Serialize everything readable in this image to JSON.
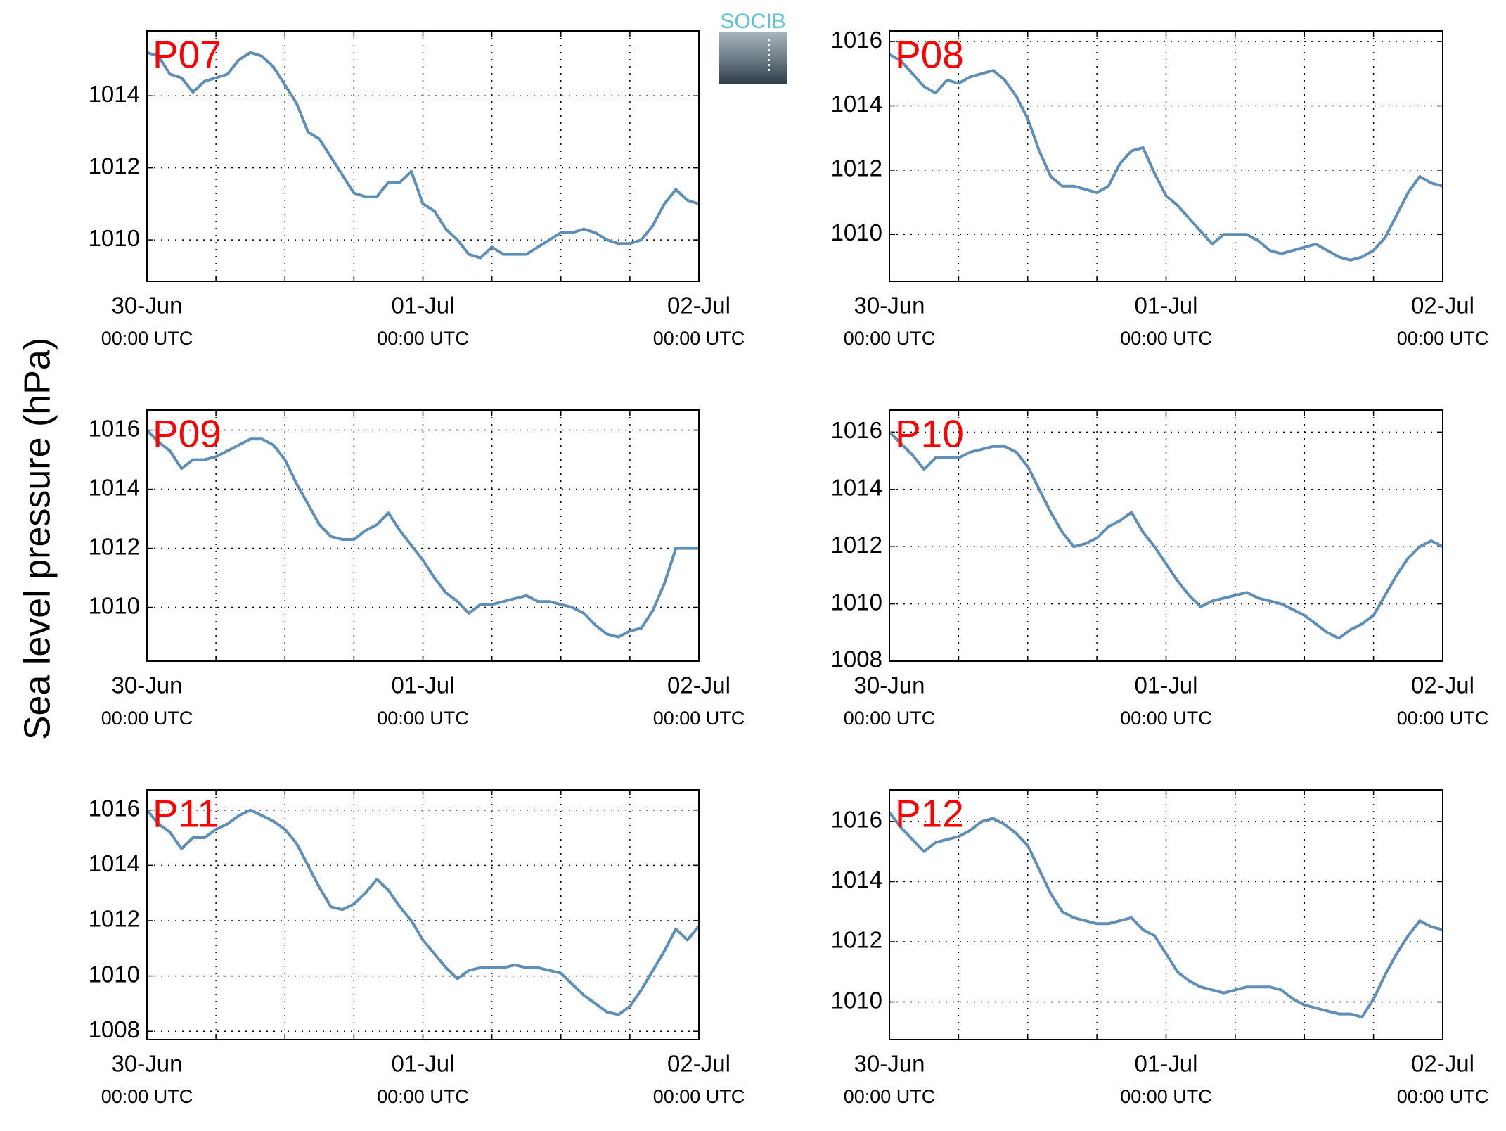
{
  "logo": "SOCIB",
  "ylabel": "Sea level pressure (hPa)",
  "chart_data": [
    {
      "type": "line",
      "title": "P07",
      "color": "#5f8fb6",
      "grid": true,
      "x": [
        0,
        1,
        2,
        3,
        4,
        5,
        6,
        7,
        8,
        9,
        10,
        11,
        12,
        13,
        14,
        15,
        16,
        17,
        18,
        19,
        20,
        21,
        22,
        23,
        24,
        25,
        26,
        27,
        28,
        29,
        30,
        31,
        32,
        33,
        34,
        35,
        36,
        37,
        38,
        39,
        40,
        41,
        42,
        43,
        44,
        45,
        46,
        47,
        48
      ],
      "values": [
        1015.2,
        1015.1,
        1014.6,
        1014.5,
        1014.1,
        1014.4,
        1014.5,
        1014.6,
        1015.0,
        1015.2,
        1015.1,
        1014.8,
        1014.3,
        1013.8,
        1013.0,
        1012.8,
        1012.3,
        1011.8,
        1011.3,
        1011.2,
        1011.2,
        1011.6,
        1011.6,
        1011.9,
        1011.0,
        1010.8,
        1010.3,
        1010.0,
        1009.6,
        1009.5,
        1009.8,
        1009.6,
        1009.6,
        1009.6,
        1009.8,
        1010.0,
        1010.2,
        1010.2,
        1010.3,
        1010.2,
        1010.0,
        1009.9,
        1009.9,
        1010.0,
        1010.4,
        1011.0,
        1011.4,
        1011.1,
        1011.0
      ],
      "xlim": [
        0,
        48
      ],
      "xticks": [
        {
          "value": 0,
          "label": "30-Jun",
          "sublabel": "00:00 UTC"
        },
        {
          "value": 24,
          "label": "01-Jul",
          "sublabel": "00:00 UTC"
        },
        {
          "value": 48,
          "label": "02-Jul",
          "sublabel": "00:00 UTC"
        }
      ],
      "xminor": [
        6,
        12,
        18,
        30,
        36,
        42
      ],
      "ylim": [
        1008.85,
        1015.8
      ],
      "yticks": [
        1010,
        1012,
        1014
      ]
    },
    {
      "type": "line",
      "title": "P08",
      "color": "#5f8fb6",
      "grid": true,
      "x": [
        0,
        1,
        2,
        3,
        4,
        5,
        6,
        7,
        8,
        9,
        10,
        11,
        12,
        13,
        14,
        15,
        16,
        17,
        18,
        19,
        20,
        21,
        22,
        23,
        24,
        25,
        26,
        27,
        28,
        29,
        30,
        31,
        32,
        33,
        34,
        35,
        36,
        37,
        38,
        39,
        40,
        41,
        42,
        43,
        44,
        45,
        46,
        47,
        48
      ],
      "values": [
        1015.6,
        1015.4,
        1015.0,
        1014.6,
        1014.4,
        1014.8,
        1014.7,
        1014.9,
        1015.0,
        1015.1,
        1014.8,
        1014.3,
        1013.6,
        1012.6,
        1011.8,
        1011.5,
        1011.5,
        1011.4,
        1011.3,
        1011.5,
        1012.2,
        1012.6,
        1012.7,
        1011.9,
        1011.2,
        1010.9,
        1010.5,
        1010.1,
        1009.7,
        1010.0,
        1010.0,
        1010.0,
        1009.8,
        1009.5,
        1009.4,
        1009.5,
        1009.6,
        1009.7,
        1009.5,
        1009.3,
        1009.2,
        1009.3,
        1009.5,
        1009.9,
        1010.6,
        1011.3,
        1011.8,
        1011.6,
        1011.5
      ],
      "xlim": [
        0,
        48
      ],
      "xticks": [
        {
          "value": 0,
          "label": "30-Jun",
          "sublabel": "00:00 UTC"
        },
        {
          "value": 24,
          "label": "01-Jul",
          "sublabel": "00:00 UTC"
        },
        {
          "value": 48,
          "label": "02-Jul",
          "sublabel": "00:00 UTC"
        }
      ],
      "xminor": [
        6,
        12,
        18,
        30,
        36,
        42
      ],
      "ylim": [
        1008.54,
        1016.33
      ],
      "yticks": [
        1010,
        1012,
        1014,
        1016
      ]
    },
    {
      "type": "line",
      "title": "P09",
      "color": "#5f8fb6",
      "grid": true,
      "x": [
        0,
        1,
        2,
        3,
        4,
        5,
        6,
        7,
        8,
        9,
        10,
        11,
        12,
        13,
        14,
        15,
        16,
        17,
        18,
        19,
        20,
        21,
        22,
        23,
        24,
        25,
        26,
        27,
        28,
        29,
        30,
        31,
        32,
        33,
        34,
        35,
        36,
        37,
        38,
        39,
        40,
        41,
        42,
        43,
        44,
        45,
        46,
        47,
        48
      ],
      "values": [
        1016.0,
        1015.6,
        1015.3,
        1014.7,
        1015.0,
        1015.0,
        1015.1,
        1015.3,
        1015.5,
        1015.7,
        1015.7,
        1015.5,
        1015.0,
        1014.2,
        1013.5,
        1012.8,
        1012.4,
        1012.3,
        1012.3,
        1012.6,
        1012.8,
        1013.2,
        1012.6,
        1012.1,
        1011.6,
        1011.0,
        1010.5,
        1010.2,
        1009.8,
        1010.1,
        1010.1,
        1010.2,
        1010.3,
        1010.4,
        1010.2,
        1010.2,
        1010.1,
        1010.0,
        1009.8,
        1009.4,
        1009.1,
        1009.0,
        1009.2,
        1009.3,
        1009.9,
        1010.8,
        1012.0,
        1012.0,
        1012.0
      ],
      "xlim": [
        0,
        48
      ],
      "xticks": [
        {
          "value": 0,
          "label": "30-Jun",
          "sublabel": "00:00 UTC"
        },
        {
          "value": 24,
          "label": "01-Jul",
          "sublabel": "00:00 UTC"
        },
        {
          "value": 48,
          "label": "02-Jul",
          "sublabel": "00:00 UTC"
        }
      ],
      "xminor": [
        6,
        12,
        18,
        30,
        36,
        42
      ],
      "ylim": [
        1008.18,
        1016.68
      ],
      "yticks": [
        1010,
        1012,
        1014,
        1016
      ]
    },
    {
      "type": "line",
      "title": "P10",
      "color": "#5f8fb6",
      "grid": true,
      "x": [
        0,
        1,
        2,
        3,
        4,
        5,
        6,
        7,
        8,
        9,
        10,
        11,
        12,
        13,
        14,
        15,
        16,
        17,
        18,
        19,
        20,
        21,
        22,
        23,
        24,
        25,
        26,
        27,
        28,
        29,
        30,
        31,
        32,
        33,
        34,
        35,
        36,
        37,
        38,
        39,
        40,
        41,
        42,
        43,
        44,
        45,
        46,
        47,
        48
      ],
      "values": [
        1016.0,
        1015.6,
        1015.2,
        1014.7,
        1015.1,
        1015.1,
        1015.1,
        1015.3,
        1015.4,
        1015.5,
        1015.5,
        1015.3,
        1014.8,
        1014.0,
        1013.2,
        1012.5,
        1012.0,
        1012.1,
        1012.3,
        1012.7,
        1012.9,
        1013.2,
        1012.5,
        1012.0,
        1011.4,
        1010.8,
        1010.3,
        1009.9,
        1010.1,
        1010.2,
        1010.3,
        1010.4,
        1010.2,
        1010.1,
        1010.0,
        1009.8,
        1009.6,
        1009.3,
        1009.0,
        1008.8,
        1009.1,
        1009.3,
        1009.6,
        1010.3,
        1011.0,
        1011.6,
        1012.0,
        1012.2,
        1012.0
      ],
      "xlim": [
        0,
        48
      ],
      "xticks": [
        {
          "value": 0,
          "label": "30-Jun",
          "sublabel": "00:00 UTC"
        },
        {
          "value": 24,
          "label": "01-Jul",
          "sublabel": "00:00 UTC"
        },
        {
          "value": 48,
          "label": "02-Jul",
          "sublabel": "00:00 UTC"
        }
      ],
      "xminor": [
        6,
        12,
        18,
        30,
        36,
        42
      ],
      "ylim": [
        1008,
        1016.77
      ],
      "yticks": [
        1008,
        1010,
        1012,
        1014,
        1016
      ]
    },
    {
      "type": "line",
      "title": "P11",
      "color": "#5f8fb6",
      "grid": true,
      "x": [
        0,
        1,
        2,
        3,
        4,
        5,
        6,
        7,
        8,
        9,
        10,
        11,
        12,
        13,
        14,
        15,
        16,
        17,
        18,
        19,
        20,
        21,
        22,
        23,
        24,
        25,
        26,
        27,
        28,
        29,
        30,
        31,
        32,
        33,
        34,
        35,
        36,
        37,
        38,
        39,
        40,
        41,
        42,
        43,
        44,
        45,
        46,
        47,
        48
      ],
      "values": [
        1016.0,
        1015.5,
        1015.2,
        1014.6,
        1015.0,
        1015.0,
        1015.3,
        1015.5,
        1015.8,
        1016.0,
        1015.8,
        1015.6,
        1015.3,
        1014.8,
        1014.0,
        1013.2,
        1012.5,
        1012.4,
        1012.6,
        1013.0,
        1013.5,
        1013.1,
        1012.5,
        1012.0,
        1011.3,
        1010.8,
        1010.3,
        1009.9,
        1010.2,
        1010.3,
        1010.3,
        1010.3,
        1010.4,
        1010.3,
        1010.3,
        1010.2,
        1010.1,
        1009.7,
        1009.3,
        1009.0,
        1008.7,
        1008.6,
        1008.9,
        1009.5,
        1010.2,
        1010.9,
        1011.7,
        1011.3,
        1011.8
      ],
      "xlim": [
        0,
        48
      ],
      "xticks": [
        {
          "value": 0,
          "label": "30-Jun",
          "sublabel": "00:00 UTC"
        },
        {
          "value": 24,
          "label": "01-Jul",
          "sublabel": "00:00 UTC"
        },
        {
          "value": 48,
          "label": "02-Jul",
          "sublabel": "00:00 UTC"
        }
      ],
      "xminor": [
        6,
        12,
        18,
        30,
        36,
        42
      ],
      "ylim": [
        1007.7,
        1016.73
      ],
      "yticks": [
        1008,
        1010,
        1012,
        1014,
        1016
      ]
    },
    {
      "type": "line",
      "title": "P12",
      "color": "#5f8fb6",
      "grid": true,
      "x": [
        0,
        1,
        2,
        3,
        4,
        5,
        6,
        7,
        8,
        9,
        10,
        11,
        12,
        13,
        14,
        15,
        16,
        17,
        18,
        19,
        20,
        21,
        22,
        23,
        24,
        25,
        26,
        27,
        28,
        29,
        30,
        31,
        32,
        33,
        34,
        35,
        36,
        37,
        38,
        39,
        40,
        41,
        42,
        43,
        44,
        45,
        46,
        47,
        48
      ],
      "values": [
        1016.3,
        1015.8,
        1015.4,
        1015.0,
        1015.3,
        1015.4,
        1015.5,
        1015.7,
        1016.0,
        1016.1,
        1015.9,
        1015.6,
        1015.2,
        1014.4,
        1013.6,
        1013.0,
        1012.8,
        1012.7,
        1012.6,
        1012.6,
        1012.7,
        1012.8,
        1012.4,
        1012.2,
        1011.6,
        1011.0,
        1010.7,
        1010.5,
        1010.4,
        1010.3,
        1010.4,
        1010.5,
        1010.5,
        1010.5,
        1010.4,
        1010.1,
        1009.9,
        1009.8,
        1009.7,
        1009.6,
        1009.6,
        1009.5,
        1010.1,
        1010.9,
        1011.6,
        1012.2,
        1012.7,
        1012.5,
        1012.4
      ],
      "xlim": [
        0,
        48
      ],
      "xticks": [
        {
          "value": 0,
          "label": "30-Jun",
          "sublabel": "00:00 UTC"
        },
        {
          "value": 24,
          "label": "01-Jul",
          "sublabel": "00:00 UTC"
        },
        {
          "value": 48,
          "label": "02-Jul",
          "sublabel": "00:00 UTC"
        }
      ],
      "xminor": [
        6,
        12,
        18,
        30,
        36,
        42
      ],
      "ylim": [
        1008.75,
        1017.05
      ],
      "yticks": [
        1010,
        1012,
        1014,
        1016
      ]
    }
  ]
}
